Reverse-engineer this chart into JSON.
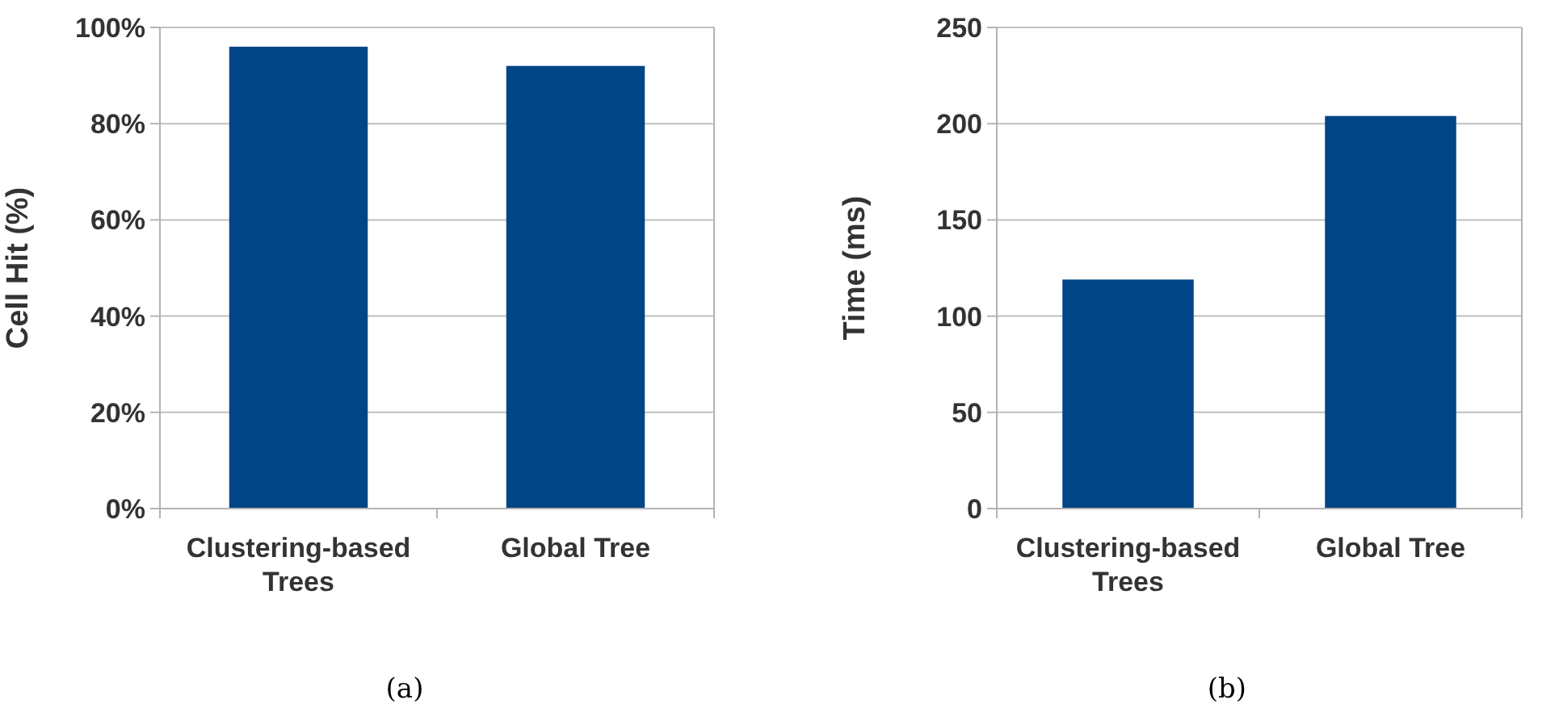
{
  "chart_data": [
    {
      "type": "bar",
      "categories": [
        "Clustering-based Trees",
        "Global Tree"
      ],
      "values": [
        96,
        92
      ],
      "color": "#004586",
      "ylabel": "Cell Hit (%)",
      "ylim": [
        0,
        100
      ],
      "yticks": [
        {
          "value": 0,
          "label": "0%"
        },
        {
          "value": 20,
          "label": "20%"
        },
        {
          "value": 40,
          "label": "40%"
        },
        {
          "value": 60,
          "label": "60%"
        },
        {
          "value": 80,
          "label": "80%"
        },
        {
          "value": 100,
          "label": "100%"
        }
      ],
      "grid": "y",
      "annotations": [
        "(a)"
      ]
    },
    {
      "type": "bar",
      "categories": [
        "Clustering-based Trees",
        "Global Tree"
      ],
      "values": [
        119,
        204
      ],
      "color": "#004586",
      "ylabel": "Time (ms)",
      "ylim": [
        0,
        250
      ],
      "yticks": [
        0,
        50,
        100,
        150,
        200,
        250
      ],
      "grid": "y",
      "annotations": [
        "(b)"
      ]
    }
  ]
}
